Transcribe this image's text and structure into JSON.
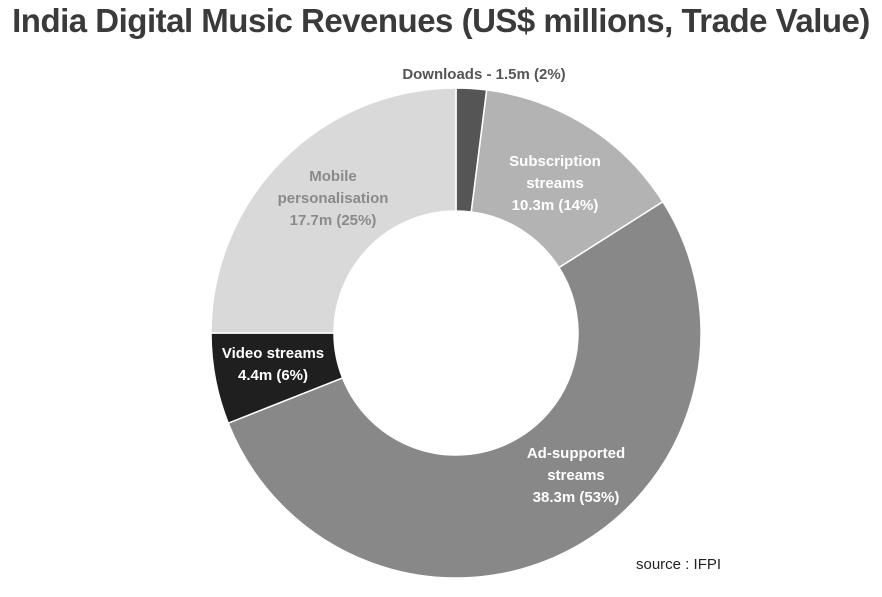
{
  "chart_data": {
    "type": "pie",
    "title": "India Digital Music Revenues (US$ millions, Trade Value)",
    "style": "donut",
    "slices": [
      {
        "category": "Downloads",
        "value": 1.5,
        "percent": 2,
        "color": "#555555",
        "label_lines": [
          "Downloads - 1.5m (2%)"
        ],
        "label_color": "#555555"
      },
      {
        "category": "Subscription streams",
        "value": 10.3,
        "percent": 14,
        "color": "#b3b3b3",
        "label_lines": [
          "Subscription",
          "streams",
          "10.3m (14%)"
        ],
        "label_color": "#ffffff"
      },
      {
        "category": "Ad-supported streams",
        "value": 38.3,
        "percent": 53,
        "color": "#888888",
        "label_lines": [
          "Ad-supported",
          "streams",
          "38.3m (53%)"
        ],
        "label_color": "#ffffff"
      },
      {
        "category": "Video streams",
        "value": 4.4,
        "percent": 6,
        "color": "#1f1f1f",
        "label_lines": [
          "Video streams",
          "4.4m (6%)"
        ],
        "label_color": "#ffffff"
      },
      {
        "category": "Mobile personalisation",
        "value": 17.7,
        "percent": 25,
        "color": "#d9d9d9",
        "label_lines": [
          "Mobile",
          "personalisation",
          "17.7m (25%)"
        ],
        "label_color": "#8a8a8a"
      }
    ]
  },
  "source": "source : IFPI"
}
